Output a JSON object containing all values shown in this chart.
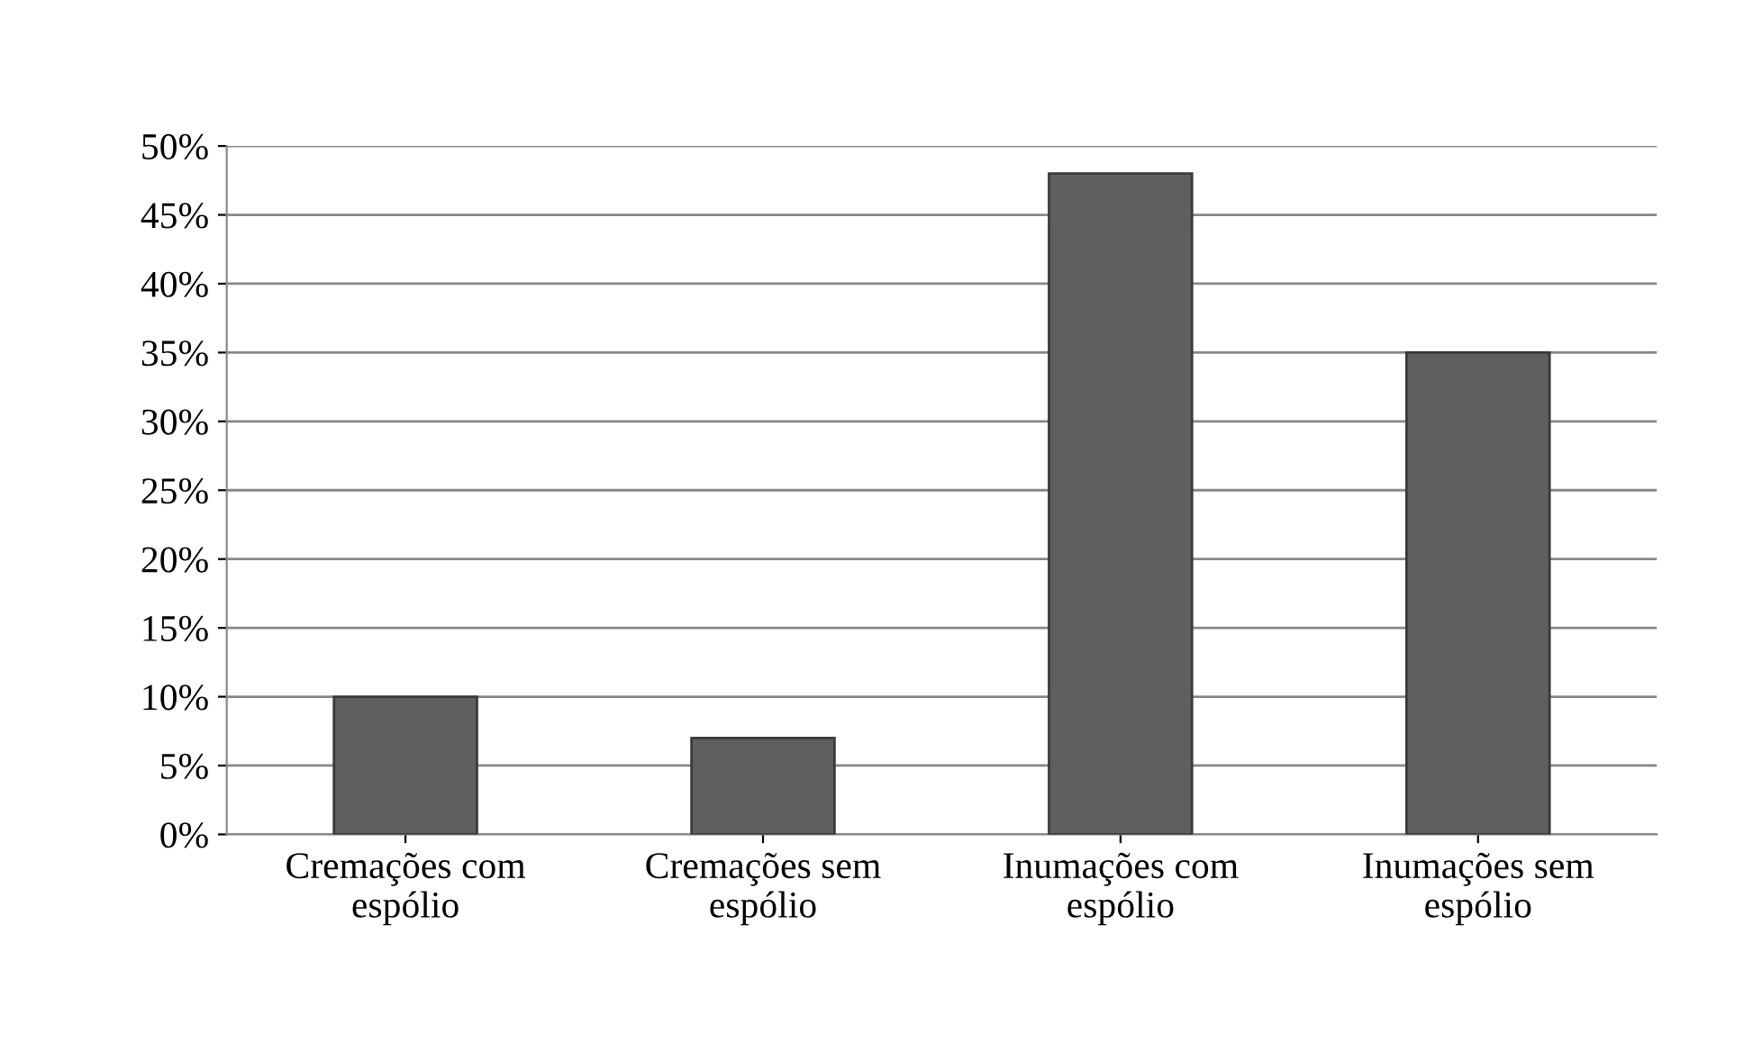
{
  "chart_data": {
    "type": "bar",
    "categories": [
      "Cremações com\nespólio",
      "Cremações sem\nespólio",
      "Inumações com\nespólio",
      "Inumações sem\nespólio"
    ],
    "values": [
      10,
      7,
      48,
      35
    ],
    "color": "#5f5f5f",
    "ylim": [
      0,
      50
    ],
    "yticks": [
      {
        "value": 0,
        "label": "0%"
      },
      {
        "value": 5,
        "label": "5%"
      },
      {
        "value": 10,
        "label": "10%"
      },
      {
        "value": 15,
        "label": "15%"
      },
      {
        "value": 20,
        "label": "20%"
      },
      {
        "value": 25,
        "label": "25%"
      },
      {
        "value": 30,
        "label": "30%"
      },
      {
        "value": 35,
        "label": "35%"
      },
      {
        "value": 40,
        "label": "40%"
      },
      {
        "value": 45,
        "label": "45%"
      },
      {
        "value": 50,
        "label": "50%"
      }
    ],
    "grid": "y"
  }
}
